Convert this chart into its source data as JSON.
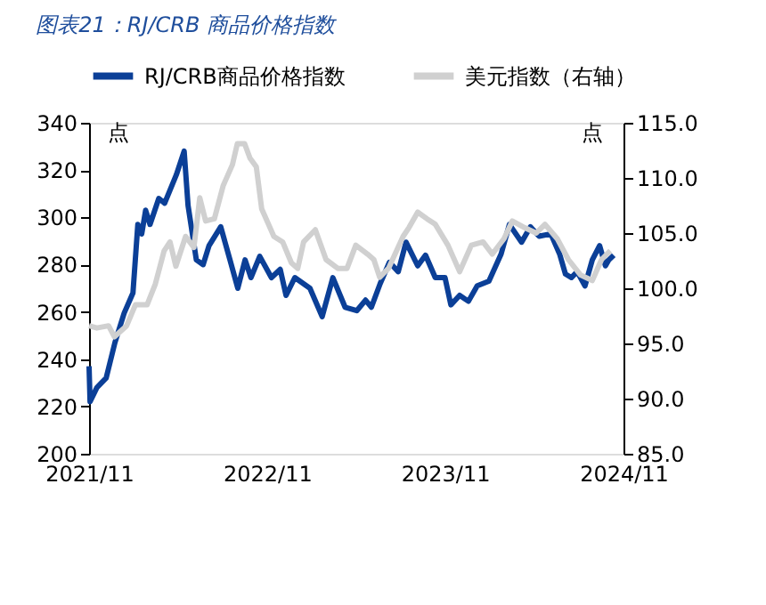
{
  "chart_data": {
    "type": "line",
    "title": "图表21：RJ/CRB 商品价格指数",
    "ylabel": "点",
    "y2label": "点",
    "legend": "top",
    "grid": false,
    "xlim": [
      "2021-11-01",
      "2024-11-01"
    ],
    "xticks": [
      {
        "value": "2021-11-01",
        "label": "2021/11"
      },
      {
        "value": "2022-11-01",
        "label": "2022/11"
      },
      {
        "value": "2023-11-01",
        "label": "2023/11"
      },
      {
        "value": "2024-11-01",
        "label": "2024/11"
      }
    ],
    "ylim": [
      200,
      340
    ],
    "yticks": [
      200,
      220,
      240,
      260,
      280,
      300,
      320,
      340
    ],
    "y2lim": [
      85,
      115
    ],
    "y2ticks": [
      {
        "value": 85,
        "label": "85.0"
      },
      {
        "value": 90,
        "label": "90.0"
      },
      {
        "value": 95,
        "label": "95.0"
      },
      {
        "value": 100,
        "label": "100.0"
      },
      {
        "value": 105,
        "label": "105.0"
      },
      {
        "value": 110,
        "label": "110.0"
      },
      {
        "value": 115,
        "label": "115.0"
      }
    ],
    "series": [
      {
        "name": "RJ/CRB商品价格指数",
        "color": "#0b3f97",
        "x": [
          "2021-11-01",
          "2021-11-03",
          "2021-11-17",
          "2021-12-06",
          "2021-12-24",
          "2022-01-12",
          "2022-01-30",
          "2022-02-09",
          "2022-02-17",
          "2022-02-25",
          "2022-03-06",
          "2022-03-24",
          "2022-04-05",
          "2022-04-17",
          "2022-04-29",
          "2022-05-15",
          "2022-05-23",
          "2022-06-09",
          "2022-06-23",
          "2022-07-05",
          "2022-07-29",
          "2022-08-17",
          "2022-09-02",
          "2022-09-17",
          "2022-09-29",
          "2022-10-17",
          "2022-11-10",
          "2022-11-28",
          "2022-12-10",
          "2022-12-28",
          "2023-01-28",
          "2023-02-22",
          "2023-03-16",
          "2023-04-10",
          "2023-05-04",
          "2023-05-22",
          "2023-06-03",
          "2023-06-21",
          "2023-07-10",
          "2023-07-28",
          "2023-08-13",
          "2023-09-06",
          "2023-09-22",
          "2023-10-12",
          "2023-11-01",
          "2023-11-13",
          "2023-12-01",
          "2023-12-19",
          "2024-01-06",
          "2024-01-30",
          "2024-02-24",
          "2024-03-12",
          "2024-04-06",
          "2024-04-24",
          "2024-05-12",
          "2024-06-05",
          "2024-06-23",
          "2024-07-05",
          "2024-07-17",
          "2024-07-29",
          "2024-08-14",
          "2024-08-29",
          "2024-09-13",
          "2024-09-25",
          "2024-10-02",
          "2024-10-12"
        ],
        "values": [
          237,
          222,
          228,
          232,
          247,
          259.5,
          268,
          297,
          293,
          303,
          297,
          308,
          306,
          312,
          318,
          328,
          305,
          282,
          280,
          288,
          296,
          282,
          270,
          282,
          274.5,
          283.5,
          274.5,
          278,
          267,
          274.5,
          270,
          258,
          274.5,
          262,
          260.5,
          265,
          262,
          272,
          281,
          277,
          289.5,
          279.5,
          284,
          274.5,
          274.5,
          263,
          267,
          264.5,
          271,
          273,
          284.5,
          297,
          289.5,
          296,
          292,
          293,
          284.5,
          276,
          274.5,
          277,
          271,
          282,
          288,
          279.5,
          282,
          284
        ]
      },
      {
        "name": "美元指数（右轴）",
        "color": "#d0d0d0",
        "axis": "y2",
        "x": [
          "2021-11-01",
          "2021-11-17",
          "2021-12-11",
          "2021-12-23",
          "2022-01-17",
          "2022-02-04",
          "2022-02-28",
          "2022-03-17",
          "2022-04-04",
          "2022-04-16",
          "2022-04-28",
          "2022-05-18",
          "2022-06-04",
          "2022-06-16",
          "2022-06-28",
          "2022-07-16",
          "2022-08-03",
          "2022-08-22",
          "2022-09-01",
          "2022-09-16",
          "2022-09-27",
          "2022-10-10",
          "2022-10-21",
          "2022-11-15",
          "2022-12-03",
          "2022-12-21",
          "2023-01-03",
          "2023-01-15",
          "2023-02-08",
          "2023-03-02",
          "2023-03-26",
          "2023-04-14",
          "2023-05-02",
          "2023-05-26",
          "2023-06-08",
          "2023-06-20",
          "2023-07-08",
          "2023-08-07",
          "2023-08-19",
          "2023-09-06",
          "2023-09-25",
          "2023-10-12",
          "2023-11-07",
          "2023-12-01",
          "2023-12-25",
          "2024-01-18",
          "2024-02-06",
          "2024-03-01",
          "2024-03-18",
          "2024-04-12",
          "2024-05-06",
          "2024-05-24",
          "2024-06-18",
          "2024-07-11",
          "2024-08-05",
          "2024-08-29",
          "2024-09-17",
          "2024-10-05"
        ],
        "values": [
          96.6,
          96.4,
          96.6,
          95.6,
          96.6,
          98.5,
          98.5,
          100.4,
          103.4,
          104.2,
          102.0,
          104.7,
          103.7,
          108.2,
          106.1,
          106.3,
          109.3,
          111.2,
          113.1,
          113.1,
          111.8,
          111.0,
          107.2,
          104.7,
          104.2,
          102.3,
          101.8,
          104.2,
          105.3,
          102.6,
          101.8,
          101.8,
          103.9,
          103.1,
          102.6,
          101.0,
          101.8,
          104.7,
          105.5,
          106.9,
          106.3,
          105.8,
          103.9,
          101.5,
          103.9,
          104.2,
          103.1,
          104.5,
          106.1,
          105.5,
          105.0,
          105.8,
          104.5,
          102.6,
          101.2,
          100.7,
          102.6,
          103.4
        ]
      }
    ]
  }
}
